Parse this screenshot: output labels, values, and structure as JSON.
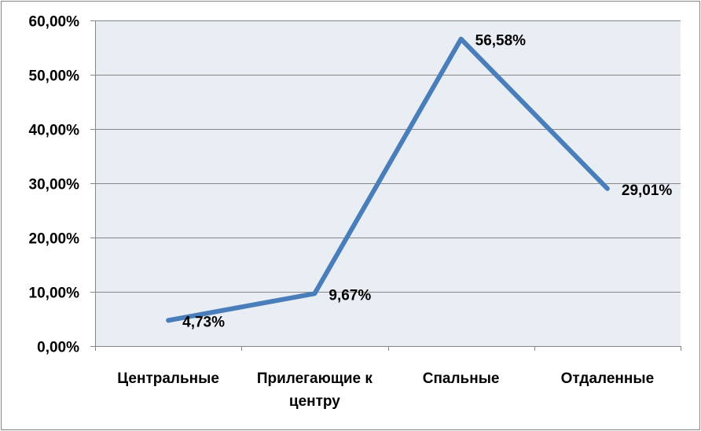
{
  "chart_data": {
    "type": "line",
    "categories": [
      "Центральные",
      "Прилегающие к центру",
      "Спальные",
      "Отдаленные"
    ],
    "category_lines": [
      [
        "Центральные"
      ],
      [
        "Прилегающие к",
        "центру"
      ],
      [
        "Спальные"
      ],
      [
        "Отдаленные"
      ]
    ],
    "values": [
      4.73,
      9.67,
      56.58,
      29.01
    ],
    "data_labels": [
      "4,73%",
      "9,67%",
      "56,58%",
      "29,01%"
    ],
    "ylim": [
      0,
      60
    ],
    "yticks": [
      0,
      10,
      20,
      30,
      40,
      50,
      60
    ],
    "ytick_labels": [
      "0,00%",
      "10,00%",
      "20,00%",
      "30,00%",
      "40,00%",
      "50,00%",
      "60,00%"
    ],
    "grid": true,
    "title": "",
    "xlabel": "",
    "ylabel": "",
    "colors": {
      "line": "#4a7ebb",
      "plot_background": "#e9edf4",
      "gridline": "#868686",
      "axis": "#868686"
    }
  }
}
